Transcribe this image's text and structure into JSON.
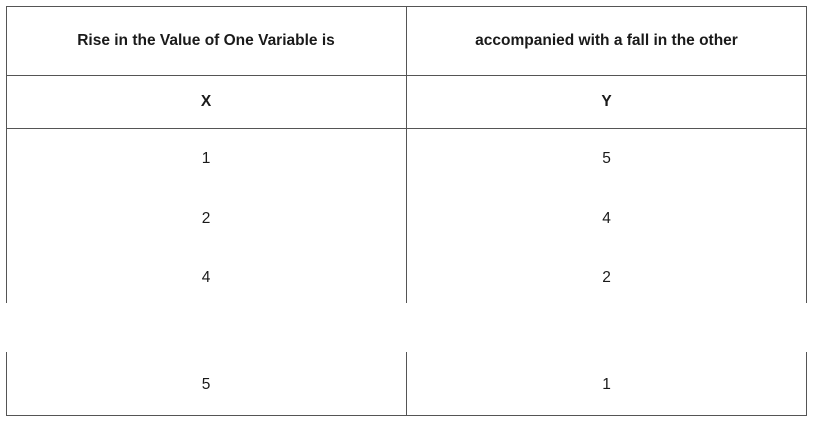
{
  "table": {
    "header": [
      "Rise in the Value of One Variable is",
      "accompanied with a fall in the other"
    ],
    "subheader": [
      "X",
      "Y"
    ],
    "rows": [
      [
        "1",
        "5"
      ],
      [
        "2",
        "4"
      ],
      [
        "4",
        "2"
      ],
      [
        "5",
        "1"
      ]
    ]
  }
}
